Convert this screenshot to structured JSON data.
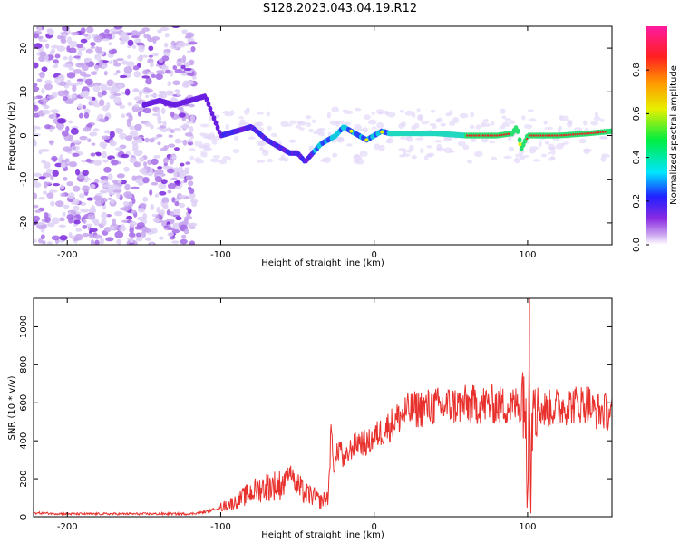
{
  "page": {
    "title": "S128.2023.043.04.19.R12"
  },
  "chart_data": [
    {
      "type": "heatmap",
      "title": "S128.2023.043.04.19.R12",
      "xlabel": "Height of straight line (km)",
      "ylabel": "Frequency (Hz)",
      "xlim": [
        -222,
        155
      ],
      "ylim": [
        -25,
        25
      ],
      "xticks": [
        -200,
        -100,
        0,
        100
      ],
      "yticks": [
        -20,
        -10,
        0,
        10,
        20
      ],
      "colorbar": {
        "label": "Normalized spectral amplitude",
        "range": [
          0.0,
          1.0
        ],
        "ticks": [
          0.0,
          0.2,
          0.4,
          0.6,
          0.8
        ],
        "colormap": "rainbow (white-purple-blue-cyan-green-yellow-orange-red-magenta)"
      },
      "ridge": {
        "x": [
          -150,
          -140,
          -130,
          -120,
          -110,
          -100,
          -90,
          -80,
          -70,
          -60,
          -55,
          -50,
          -45,
          -40,
          -35,
          -30,
          -25,
          -20,
          -15,
          -10,
          -5,
          0,
          5,
          10,
          20,
          40,
          60,
          80,
          90,
          93,
          96,
          100,
          120,
          140,
          155
        ],
        "y": [
          7,
          8,
          7,
          8,
          9,
          0,
          1,
          2,
          -1,
          -3,
          -4,
          -4,
          -6,
          -4,
          -2,
          -1,
          0,
          2,
          1,
          0,
          -1,
          0,
          1,
          0.5,
          0.5,
          0.5,
          0,
          0,
          0.5,
          2,
          -3,
          0,
          0,
          0.5,
          1
        ]
      },
      "grid": false
    },
    {
      "type": "line",
      "xlabel": "Height of straight line (km)",
      "ylabel": "SNR (10 * v/v)",
      "xlim": [
        -222,
        155
      ],
      "ylim": [
        0,
        1150
      ],
      "xticks": [
        -200,
        -100,
        0,
        100
      ],
      "yticks": [
        0,
        200,
        400,
        600,
        800,
        1000
      ],
      "series": [
        {
          "color": "#e8312d",
          "x": [
            -222,
            -200,
            -180,
            -160,
            -140,
            -120,
            -110,
            -100,
            -90,
            -80,
            -70,
            -60,
            -55,
            -50,
            -45,
            -40,
            -35,
            -30,
            -28,
            -26,
            -24,
            -22,
            -20,
            -15,
            -10,
            -5,
            0,
            5,
            10,
            20,
            30,
            40,
            60,
            80,
            90,
            95,
            98,
            100,
            101,
            102,
            104,
            106,
            110,
            120,
            140,
            142,
            155
          ],
          "y": [
            20,
            15,
            15,
            15,
            15,
            15,
            25,
            50,
            80,
            130,
            160,
            170,
            250,
            160,
            120,
            110,
            80,
            100,
            450,
            250,
            340,
            380,
            280,
            360,
            400,
            380,
            420,
            450,
            480,
            550,
            570,
            580,
            590,
            590,
            580,
            600,
            700,
            60,
            1150,
            200,
            800,
            600,
            560,
            580,
            600,
            560,
            550
          ]
        }
      ],
      "grid": false
    }
  ]
}
